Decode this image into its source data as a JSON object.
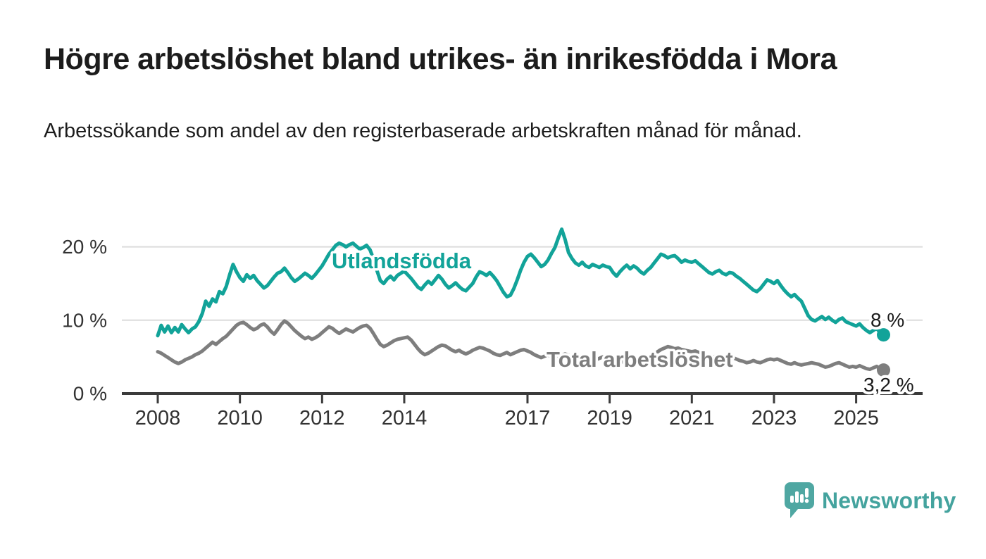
{
  "header": {
    "title": "Högre arbetslöshet bland utrikes- än inrikesfödda i Mora",
    "subtitle": "Arbetssökande som andel av den registerbaserade arbetskraften månad för månad."
  },
  "footer": {
    "brand": "Newsworthy",
    "logo_icon": "speech-bubble-bar-chart",
    "brand_color": "#4fa7a2"
  },
  "chart_data": {
    "type": "line",
    "title": "Högre arbetslöshet bland utrikes- än inrikesfödda i Mora",
    "subtitle": "Arbetssökande som andel av den registerbaserade arbetskraften månad för månad.",
    "unit": "%",
    "x_start": "2008-01",
    "x_end": "2025-09",
    "points_per_year": 12,
    "ylim": [
      0,
      23
    ],
    "grid": "horizontal",
    "y_ticks": [
      {
        "value": 0,
        "label": "0 %"
      },
      {
        "value": 10,
        "label": "10 %"
      },
      {
        "value": 20,
        "label": "20 %"
      }
    ],
    "x_ticks": [
      {
        "year": 2008,
        "label": "2008"
      },
      {
        "year": 2010,
        "label": "2010"
      },
      {
        "year": 2012,
        "label": "2012"
      },
      {
        "year": 2014,
        "label": "2014"
      },
      {
        "year": 2017,
        "label": "2017"
      },
      {
        "year": 2019,
        "label": "2019"
      },
      {
        "year": 2021,
        "label": "2021"
      },
      {
        "year": 2023,
        "label": "2023"
      },
      {
        "year": 2025,
        "label": "2025"
      }
    ],
    "series": [
      {
        "name": "Utlandsfödda",
        "color": "#12a399",
        "end_label": "8 %",
        "last_value": 8.0,
        "values": [
          7.9,
          9.3,
          8.4,
          9.2,
          8.3,
          9.0,
          8.4,
          9.4,
          8.8,
          8.3,
          8.8,
          9.1,
          9.8,
          10.9,
          12.6,
          11.9,
          12.9,
          12.5,
          13.9,
          13.6,
          14.6,
          16.2,
          17.6,
          16.6,
          15.8,
          15.3,
          16.2,
          15.7,
          16.1,
          15.4,
          14.9,
          14.4,
          14.7,
          15.3,
          15.9,
          16.4,
          16.6,
          17.1,
          16.5,
          15.8,
          15.3,
          15.6,
          16.0,
          16.4,
          16.1,
          15.7,
          16.2,
          16.8,
          17.4,
          18.2,
          19.0,
          19.6,
          20.2,
          20.5,
          20.3,
          20.0,
          20.3,
          20.5,
          20.1,
          19.7,
          19.9,
          20.2,
          19.6,
          18.4,
          16.8,
          15.4,
          15.0,
          15.6,
          16.0,
          15.5,
          16.1,
          16.4,
          16.7,
          16.2,
          15.7,
          15.1,
          14.5,
          14.2,
          14.8,
          15.3,
          14.9,
          15.5,
          16.1,
          15.6,
          14.9,
          14.4,
          14.7,
          15.1,
          14.6,
          14.2,
          14.0,
          14.5,
          15.0,
          15.9,
          16.6,
          16.4,
          16.1,
          16.5,
          16.0,
          15.4,
          14.6,
          13.8,
          13.2,
          13.4,
          14.3,
          15.5,
          16.8,
          17.9,
          18.7,
          19.0,
          18.5,
          17.9,
          17.3,
          17.6,
          18.2,
          19.1,
          19.9,
          21.2,
          22.4,
          21.0,
          19.2,
          18.4,
          17.8,
          17.5,
          17.9,
          17.4,
          17.2,
          17.6,
          17.4,
          17.2,
          17.5,
          17.3,
          17.2,
          16.5,
          16.0,
          16.6,
          17.1,
          17.5,
          17.0,
          17.4,
          17.1,
          16.6,
          16.3,
          16.8,
          17.2,
          17.8,
          18.4,
          19.0,
          18.8,
          18.5,
          18.7,
          18.8,
          18.4,
          17.9,
          18.2,
          18.0,
          17.9,
          18.1,
          17.7,
          17.3,
          16.9,
          16.5,
          16.3,
          16.6,
          16.8,
          16.4,
          16.2,
          16.5,
          16.4,
          16.0,
          15.7,
          15.3,
          14.9,
          14.5,
          14.1,
          13.9,
          14.3,
          14.9,
          15.5,
          15.3,
          15.0,
          15.4,
          14.7,
          14.1,
          13.6,
          13.2,
          13.5,
          13.0,
          12.6,
          11.6,
          10.6,
          10.1,
          9.9,
          10.2,
          10.5,
          10.1,
          10.4,
          10.0,
          9.7,
          10.1,
          10.3,
          9.8,
          9.6,
          9.4,
          9.2,
          9.5,
          9.0,
          8.6,
          8.3,
          8.6,
          8.9,
          8.3,
          8.0
        ]
      },
      {
        "name": "Total arbetslöshet",
        "color": "#7e7e7e",
        "end_label": "3,2 %",
        "last_value": 3.2,
        "values": [
          5.7,
          5.5,
          5.2,
          4.9,
          4.6,
          4.3,
          4.1,
          4.3,
          4.6,
          4.8,
          5.0,
          5.3,
          5.5,
          5.8,
          6.2,
          6.6,
          7.0,
          6.7,
          7.1,
          7.5,
          7.8,
          8.3,
          8.8,
          9.3,
          9.6,
          9.7,
          9.4,
          9.0,
          8.7,
          8.9,
          9.3,
          9.5,
          9.1,
          8.5,
          8.1,
          8.7,
          9.4,
          9.9,
          9.6,
          9.1,
          8.6,
          8.2,
          7.8,
          7.5,
          7.7,
          7.4,
          7.6,
          7.9,
          8.3,
          8.7,
          9.1,
          8.9,
          8.5,
          8.2,
          8.5,
          8.8,
          8.6,
          8.4,
          8.7,
          9.0,
          9.2,
          9.3,
          8.9,
          8.2,
          7.4,
          6.7,
          6.4,
          6.6,
          6.9,
          7.2,
          7.4,
          7.5,
          7.6,
          7.7,
          7.3,
          6.7,
          6.1,
          5.6,
          5.3,
          5.5,
          5.8,
          6.1,
          6.4,
          6.6,
          6.5,
          6.2,
          5.9,
          5.7,
          5.9,
          5.6,
          5.4,
          5.6,
          5.9,
          6.1,
          6.3,
          6.2,
          6.0,
          5.8,
          5.5,
          5.3,
          5.2,
          5.4,
          5.6,
          5.3,
          5.5,
          5.7,
          5.9,
          6.0,
          5.8,
          5.6,
          5.3,
          5.1,
          4.9,
          5.1,
          5.3,
          5.0,
          4.8,
          5.0,
          5.2,
          5.4,
          5.2,
          5.0,
          4.8,
          4.6,
          4.7,
          4.9,
          4.6,
          4.4,
          4.6,
          4.8,
          5.0,
          5.1,
          5.0,
          4.8,
          4.6,
          4.4,
          4.3,
          4.5,
          4.7,
          4.4,
          4.6,
          4.7,
          4.9,
          5.0,
          5.1,
          5.3,
          5.7,
          6.0,
          6.2,
          6.4,
          6.3,
          6.1,
          6.2,
          6.0,
          5.9,
          5.8,
          5.7,
          5.8,
          5.6,
          5.4,
          5.2,
          5.0,
          4.9,
          5.1,
          5.0,
          4.8,
          4.9,
          5.0,
          4.9,
          4.7,
          4.5,
          4.4,
          4.2,
          4.3,
          4.5,
          4.3,
          4.2,
          4.4,
          4.6,
          4.7,
          4.6,
          4.7,
          4.5,
          4.3,
          4.1,
          4.0,
          4.2,
          4.0,
          3.9,
          4.0,
          4.1,
          4.2,
          4.1,
          4.0,
          3.8,
          3.6,
          3.7,
          3.9,
          4.1,
          4.2,
          4.0,
          3.8,
          3.6,
          3.7,
          3.6,
          3.8,
          3.6,
          3.4,
          3.3,
          3.5,
          3.7,
          3.4,
          3.2
        ]
      }
    ],
    "annotations": {
      "series_label_1": "Utlandsfödda",
      "series_label_2": "Total arbetslöshet",
      "end_label_1": "8 %",
      "end_label_2": "3,2 %"
    },
    "axis_color": "#3b3b3b",
    "gridline_color": "#dcdcdc",
    "text_color": "#333333"
  }
}
